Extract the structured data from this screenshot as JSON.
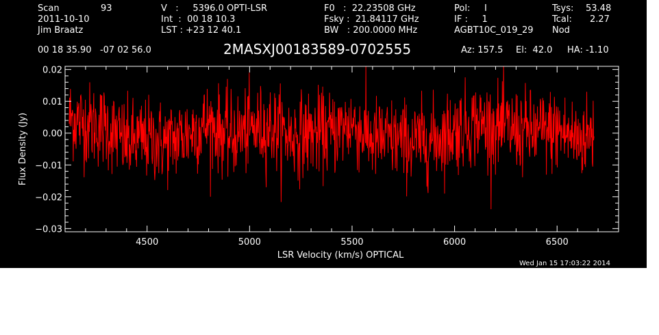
{
  "header": {
    "col1": {
      "scan_label": "Scan",
      "scan_value": "93",
      "date": "2011-10-10",
      "observer": "Jim Braatz"
    },
    "col2": {
      "velocity": "V   :     5396.0 OPTI-LSR",
      "integration": "Int  :  00 18 10.3",
      "lst": "LST : +23 12 40.1"
    },
    "col3": {
      "f0": "F0   :  22.23508 GHz",
      "fsky": "Fsky :  21.84117 GHz",
      "bw": "BW   : 200.0000 MHz"
    },
    "col4": {
      "pol": "Pol:     I",
      "if": "IF :     1",
      "project": "AGBT10C_019_29"
    },
    "col5": {
      "tsys_label": "Tsys:",
      "tsys_value": "53.48",
      "tcal_label": "Tcal:",
      "tcal_value": "2.27",
      "mode": "Nod"
    },
    "coords": "00 18 35.90   -07 02 56.0",
    "source": "2MASXJ00183589-0702555",
    "pointing": {
      "az": "Az: 157.5",
      "el": "El:  42.0",
      "ha": "HA: -1.10"
    }
  },
  "timestamp": "Wed Jan 15 17:03:22 2014",
  "chart_data": {
    "type": "line",
    "title": "2MASXJ00183589-0702555",
    "xlabel": "LSR Velocity (km/s) OPTICAL",
    "ylabel": "Flux Density (Jy)",
    "xlim": [
      4100,
      6800
    ],
    "ylim": [
      -0.031,
      0.021
    ],
    "x_ticks": [
      4500,
      5000,
      5500,
      6000,
      6500
    ],
    "x_tick_labels": [
      "4500",
      "5000",
      "5500",
      "6000",
      "6500"
    ],
    "y_ticks": [
      -0.03,
      -0.02,
      -0.01,
      0.0,
      0.01,
      0.02
    ],
    "y_tick_labels": [
      "−0.03",
      "−0.02",
      "−0.01",
      "0.00",
      "0.01",
      "0.02"
    ],
    "grid": false,
    "series": [
      {
        "color": "#ff0000",
        "noise_rms": 0.0065,
        "x": [
          4120,
          4200,
          4300,
          4400,
          4500,
          4600,
          4700,
          4800,
          4900,
          5000,
          5100,
          5200,
          5300,
          5400,
          5500,
          5600,
          5700,
          5800,
          5900,
          6000,
          6100,
          6200,
          6300,
          6400,
          6500,
          6600,
          6680
        ],
        "y": [
          0.005,
          0.003,
          0.002,
          -0.003,
          -0.002,
          -0.003,
          0.0,
          0.003,
          -0.001,
          0.001,
          0.002,
          -0.001,
          0.0,
          0.0,
          0.003,
          -0.002,
          -0.002,
          -0.003,
          -0.002,
          0.001,
          0.003,
          0.002,
          0.001,
          0.0,
          0.001,
          -0.002,
          0.0
        ]
      }
    ]
  }
}
